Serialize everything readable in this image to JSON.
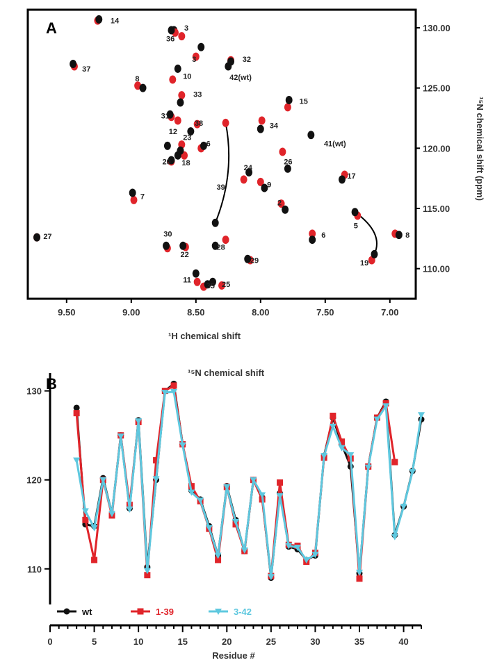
{
  "chart_data": [
    {
      "type": "scatter",
      "panel": "A",
      "xlabel": "¹H chemical shift",
      "ylabel": "¹⁵N chemical shift (ppm)",
      "xlim": [
        9.8,
        6.8
      ],
      "ylim": [
        131.5,
        107.5
      ],
      "x_ticks": [
        "9.50",
        "9.00",
        "8.50",
        "8.00",
        "7.50",
        "7.00"
      ],
      "x_tick_values": [
        9.5,
        9.0,
        8.5,
        8.0,
        7.5,
        7.0
      ],
      "y_ticks": [
        "110.00",
        "115.00",
        "120.00",
        "125.00",
        "130.00"
      ],
      "y_tick_values": [
        110,
        115,
        120,
        125,
        130
      ],
      "colors": {
        "wt": "#111111",
        "variant": "#e0242a"
      },
      "peaks": [
        {
          "label": "35",
          "h": 8.42,
          "n": 108.6,
          "wt": [
            8.41,
            108.7
          ],
          "var": [
            8.44,
            108.5
          ]
        },
        {
          "label": "25",
          "h": 8.3,
          "n": 108.7,
          "wt": [
            8.37,
            108.9
          ],
          "var": [
            8.3,
            108.6
          ]
        },
        {
          "label": "11",
          "h": 8.6,
          "n": 109.1,
          "wt": [
            8.5,
            109.6
          ],
          "var": [
            8.49,
            108.9
          ]
        },
        {
          "label": "29",
          "h": 8.08,
          "n": 110.7,
          "wt": [
            8.1,
            110.8
          ],
          "var": [
            8.08,
            110.7
          ]
        },
        {
          "label": "19",
          "h": 7.23,
          "n": 110.5,
          "wt": [
            7.12,
            111.2
          ],
          "var": [
            7.14,
            110.7
          ]
        },
        {
          "label": "22",
          "h": 8.62,
          "n": 111.2,
          "wt": [
            8.6,
            111.9
          ],
          "var": [
            8.58,
            111.8
          ]
        },
        {
          "label": "28",
          "h": 8.34,
          "n": 111.8,
          "wt": [
            8.35,
            111.9
          ],
          "var": [
            8.27,
            112.4
          ]
        },
        {
          "label": "30",
          "h": 8.75,
          "n": 112.9,
          "wt": [
            8.73,
            111.9
          ],
          "var": [
            8.72,
            111.7
          ]
        },
        {
          "label": "27",
          "h": 9.68,
          "n": 112.7,
          "wt": [
            9.73,
            112.6
          ],
          "var": [
            9.73,
            112.6
          ]
        },
        {
          "label": "6",
          "h": 7.53,
          "n": 112.8,
          "wt": [
            7.6,
            112.4
          ],
          "var": [
            7.6,
            112.9
          ]
        },
        {
          "label": "8",
          "h": 6.88,
          "n": 112.8,
          "wt": [
            6.93,
            112.8
          ],
          "var": [
            6.96,
            112.9
          ]
        },
        {
          "label": "5",
          "h": 7.28,
          "n": 113.6,
          "wt": [
            7.27,
            114.7
          ],
          "var": [
            7.25,
            114.4
          ]
        },
        {
          "label": "2",
          "h": 7.87,
          "n": 115.5,
          "wt": [
            7.81,
            114.9
          ],
          "var": [
            7.84,
            115.4
          ]
        },
        {
          "label": "7",
          "h": 8.93,
          "n": 116.0,
          "wt": [
            8.99,
            116.3
          ],
          "var": [
            8.98,
            115.7
          ]
        },
        {
          "label": "9",
          "h": 7.95,
          "n": 117.0,
          "wt": [
            7.97,
            116.7
          ],
          "var": [
            8.0,
            117.2
          ]
        },
        {
          "label": "39",
          "h": 8.34,
          "n": 116.8,
          "wt": [
            8.35,
            113.8
          ],
          "var": [
            8.27,
            122.1
          ]
        },
        {
          "label": "24",
          "h": 8.13,
          "n": 118.4,
          "wt": [
            8.09,
            118.0
          ],
          "var": [
            8.13,
            117.4
          ]
        },
        {
          "label": "17",
          "h": 7.33,
          "n": 117.7,
          "wt": [
            7.37,
            117.4
          ],
          "var": [
            7.35,
            117.8
          ]
        },
        {
          "label": "18",
          "h": 8.61,
          "n": 118.8,
          "wt": [
            8.64,
            119.4
          ],
          "var": [
            8.59,
            119.4
          ]
        },
        {
          "label": "20",
          "h": 8.76,
          "n": 118.9,
          "wt": [
            8.69,
            119.0
          ],
          "var": [
            8.69,
            118.9
          ]
        },
        {
          "label": "26",
          "h": 7.82,
          "n": 118.9,
          "wt": [
            7.79,
            118.3
          ],
          "var": [
            7.83,
            119.7
          ]
        },
        {
          "label": "23",
          "h": 8.6,
          "n": 120.9,
          "wt": [
            8.62,
            119.8
          ],
          "var": [
            8.61,
            120.3
          ]
        },
        {
          "label": "6",
          "h": 8.42,
          "n": 120.4,
          "wt": [
            8.44,
            120.2
          ],
          "var": [
            8.46,
            120.0
          ]
        },
        {
          "label": "41(wt)",
          "h": 7.51,
          "n": 120.4,
          "wt": [
            7.61,
            121.1
          ],
          "var": null
        },
        {
          "label": "12",
          "h": 8.71,
          "n": 121.4,
          "wt": [
            8.72,
            120.2
          ],
          "var": [
            8.64,
            122.3
          ]
        },
        {
          "label": "38",
          "h": 8.51,
          "n": 122.1,
          "wt": [
            8.54,
            121.4
          ],
          "var": [
            8.49,
            122.0
          ]
        },
        {
          "label": "34",
          "h": 7.93,
          "n": 121.9,
          "wt": [
            8.0,
            121.6
          ],
          "var": [
            7.99,
            122.3
          ]
        },
        {
          "label": "31",
          "h": 8.77,
          "n": 122.7,
          "wt": [
            8.7,
            122.8
          ],
          "var": [
            8.69,
            122.6
          ]
        },
        {
          "label": "15",
          "h": 7.7,
          "n": 123.9,
          "wt": [
            7.78,
            124.0
          ],
          "var": [
            7.79,
            123.4
          ]
        },
        {
          "label": "33",
          "h": 8.52,
          "n": 124.5,
          "wt": [
            8.62,
            123.8
          ],
          "var": [
            8.61,
            124.4
          ]
        },
        {
          "label": "8",
          "h": 8.97,
          "n": 125.8,
          "wt": [
            8.91,
            125.0
          ],
          "var": [
            8.95,
            125.2
          ]
        },
        {
          "label": "10",
          "h": 8.6,
          "n": 126.0,
          "wt": [
            8.64,
            126.6
          ],
          "var": [
            8.68,
            125.7
          ]
        },
        {
          "label": "42(wt)",
          "h": 8.24,
          "n": 125.9,
          "wt": [
            8.25,
            126.8
          ],
          "var": null
        },
        {
          "label": "32",
          "h": 8.14,
          "n": 127.4,
          "wt": [
            8.23,
            127.2
          ],
          "var": [
            8.23,
            127.3
          ]
        },
        {
          "label": "37",
          "h": 9.38,
          "n": 126.6,
          "wt": [
            9.45,
            127.0
          ],
          "var": [
            9.44,
            126.8
          ]
        },
        {
          "label": "3",
          "h": 8.53,
          "n": 127.4,
          "wt": [
            8.46,
            128.4
          ],
          "var": [
            8.5,
            127.6
          ]
        },
        {
          "label": "36",
          "h": 8.73,
          "n": 129.1,
          "wt": [
            8.67,
            129.8
          ],
          "var": [
            8.61,
            129.3
          ]
        },
        {
          "label": "3",
          "h": 8.59,
          "n": 130.0,
          "wt": [
            8.69,
            129.8
          ],
          "var": [
            8.66,
            129.6
          ]
        },
        {
          "label": "14",
          "h": 9.16,
          "n": 130.6,
          "wt": [
            9.25,
            130.7
          ],
          "var": [
            9.26,
            130.6
          ]
        }
      ],
      "arrows": [
        {
          "from": [
            8.35,
            113.8
          ],
          "to": [
            8.27,
            122.1
          ]
        },
        {
          "from": [
            7.12,
            111.2
          ],
          "to": [
            7.27,
            114.7
          ]
        }
      ]
    },
    {
      "type": "line",
      "panel": "B",
      "title": "¹⁵N chemical shift",
      "xlabel": "Residue #",
      "ylabel": "",
      "xlim": [
        0,
        42
      ],
      "ylim": [
        106,
        132
      ],
      "x_ticks": [
        "0",
        "5",
        "10",
        "15",
        "20",
        "25",
        "30",
        "35",
        "40"
      ],
      "x_tick_values": [
        0,
        5,
        10,
        15,
        20,
        25,
        30,
        35,
        40
      ],
      "y_ticks": [
        "110",
        "120",
        "130"
      ],
      "y_tick_values": [
        110,
        120,
        130
      ],
      "legend_position": "bottom-left",
      "series": [
        {
          "name": "wt",
          "color": "#111111",
          "marker": "circle",
          "x": [
            3,
            4,
            5,
            6,
            7,
            8,
            9,
            10,
            11,
            12,
            13,
            14,
            15,
            16,
            17,
            18,
            19,
            20,
            21,
            22,
            23,
            24,
            25,
            26,
            27,
            28,
            29,
            30,
            31,
            32,
            33,
            34,
            35,
            36,
            37,
            38,
            39,
            40,
            41,
            42
          ],
          "values": [
            128.1,
            115.0,
            114.8,
            120.2,
            116.2,
            125.0,
            116.8,
            126.7,
            110.2,
            120.0,
            130.0,
            130.8,
            124.0,
            118.8,
            117.8,
            114.8,
            111.5,
            119.3,
            115.5,
            112.0,
            120.0,
            118.0,
            109.0,
            118.5,
            112.5,
            112.2,
            111.0,
            111.5,
            122.7,
            127.0,
            124.0,
            121.5,
            109.5,
            121.5,
            127.0,
            128.8,
            113.8,
            117.0,
            121.0,
            126.8
          ]
        },
        {
          "name": "1-39",
          "color": "#e0242a",
          "marker": "square",
          "x": [
            3,
            4,
            5,
            6,
            7,
            8,
            9,
            10,
            11,
            12,
            13,
            14,
            15,
            16,
            17,
            18,
            19,
            20,
            21,
            22,
            23,
            24,
            25,
            26,
            27,
            28,
            29,
            30,
            31,
            32,
            33,
            34,
            35,
            36,
            37,
            38,
            39
          ],
          "values": [
            127.5,
            115.5,
            111.0,
            120.0,
            116.0,
            125.0,
            117.2,
            126.5,
            109.3,
            122.2,
            130.0,
            130.6,
            124.0,
            119.3,
            117.6,
            114.5,
            111.0,
            119.2,
            115.0,
            112.0,
            120.0,
            117.8,
            109.2,
            119.7,
            112.7,
            112.6,
            110.8,
            111.8,
            122.5,
            127.2,
            124.3,
            122.4,
            108.9,
            121.5,
            127.0,
            128.6,
            122.0
          ]
        },
        {
          "name": "3-42",
          "color": "#5ec8df",
          "marker": "triangle-down",
          "x": [
            3,
            4,
            5,
            6,
            7,
            8,
            9,
            10,
            11,
            12,
            13,
            14,
            15,
            16,
            17,
            18,
            19,
            20,
            21,
            22,
            23,
            24,
            25,
            26,
            27,
            28,
            29,
            30,
            31,
            32,
            33,
            34,
            35,
            36,
            37,
            38,
            39,
            40,
            41,
            42
          ],
          "values": [
            122.2,
            116.5,
            114.6,
            120.0,
            116.2,
            124.9,
            116.7,
            126.6,
            109.8,
            120.1,
            129.8,
            129.9,
            123.9,
            118.6,
            117.7,
            114.6,
            111.5,
            119.2,
            115.3,
            112.1,
            120.0,
            118.3,
            109.1,
            118.2,
            112.6,
            112.4,
            111.0,
            111.6,
            122.7,
            126.0,
            123.6,
            122.8,
            109.6,
            121.4,
            126.8,
            128.3,
            113.6,
            117.0,
            120.9,
            127.3
          ]
        }
      ]
    }
  ]
}
